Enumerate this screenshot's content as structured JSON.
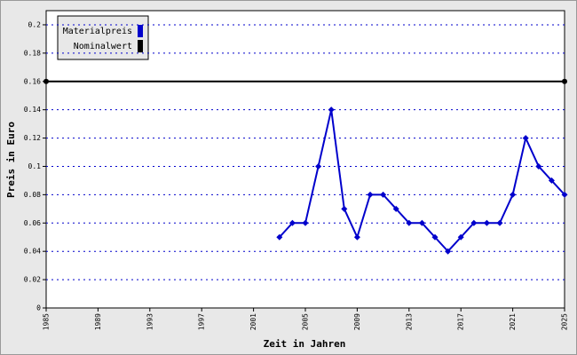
{
  "chart_data": {
    "type": "line",
    "xlabel": "Zeit in Jahren",
    "ylabel": "Preis in Euro",
    "series": [
      {
        "name": "Materialpreis",
        "color": "#0000cc",
        "x": [
          2003,
          2004,
          2005,
          2006,
          2007,
          2008,
          2009,
          2010,
          2011,
          2012,
          2013,
          2014,
          2015,
          2016,
          2017,
          2018,
          2019,
          2020,
          2021,
          2022,
          2023,
          2024,
          2025
        ],
        "values": [
          0.05,
          0.06,
          0.06,
          0.1,
          0.14,
          0.07,
          0.05,
          0.08,
          0.08,
          0.07,
          0.06,
          0.06,
          0.05,
          0.04,
          0.05,
          0.06,
          0.06,
          0.06,
          0.08,
          0.12,
          0.1,
          0.09,
          0.08
        ]
      },
      {
        "name": "Nominalwert",
        "color": "#000000",
        "x": [
          1985,
          2025
        ],
        "values": [
          0.16,
          0.16
        ]
      }
    ],
    "xlim": [
      1985,
      2025
    ],
    "xticks": [
      1985,
      1989,
      1993,
      1997,
      2001,
      2005,
      2009,
      2013,
      2017,
      2021,
      2025
    ],
    "ylim": [
      0,
      0.21
    ],
    "yticks": [
      0,
      0.02,
      0.04,
      0.06,
      0.08,
      0.1,
      0.12,
      0.14,
      0.16,
      0.18,
      0.2
    ],
    "grid": true,
    "legend": "top-left"
  }
}
